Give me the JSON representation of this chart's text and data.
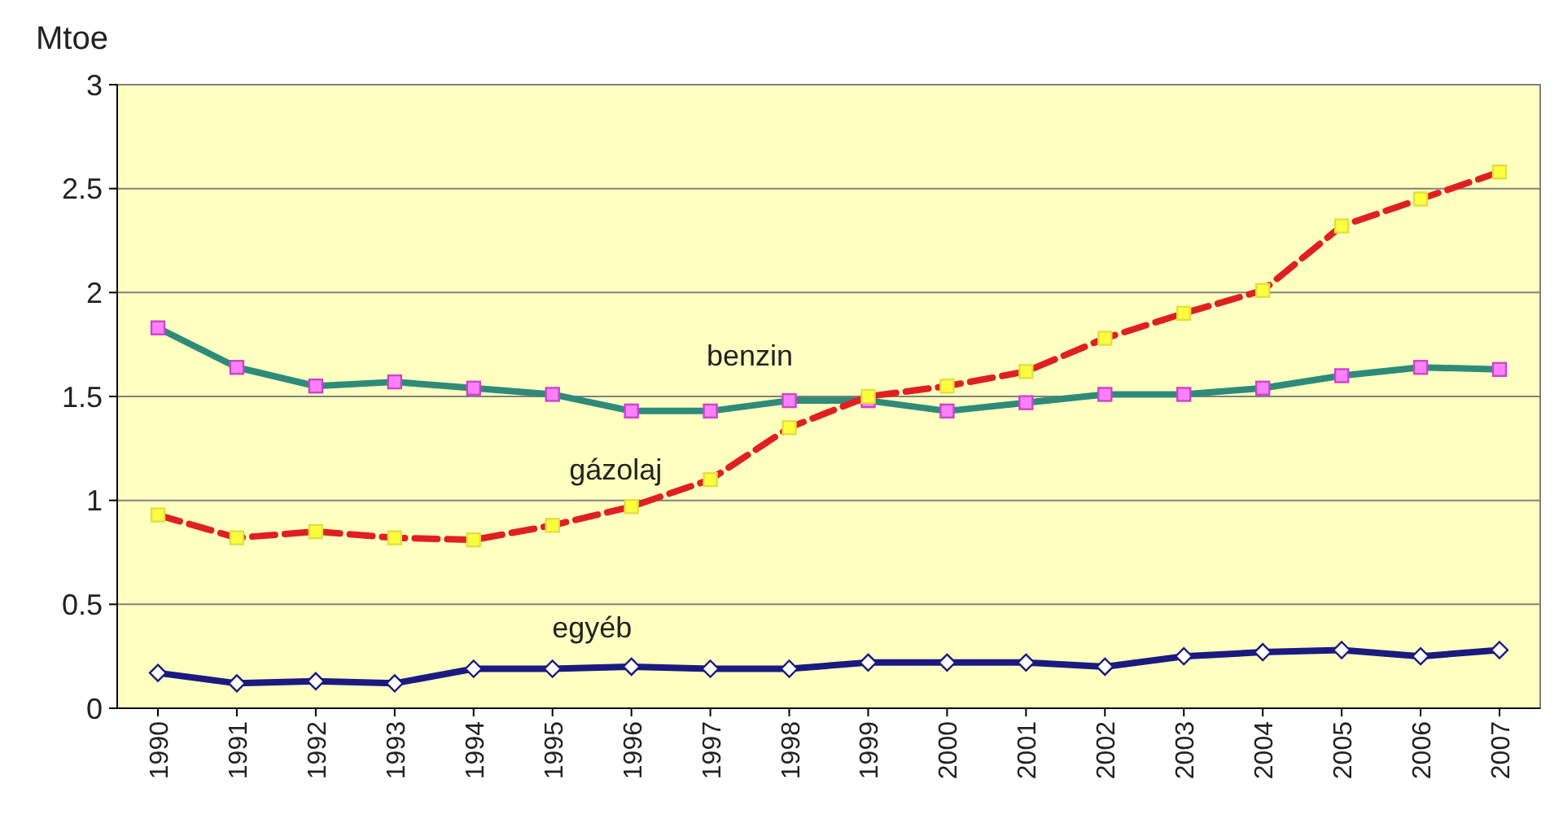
{
  "chart_data": {
    "type": "line",
    "ylabel": "Mtoe",
    "categories": [
      "1990",
      "1991",
      "1992",
      "1993",
      "1994",
      "1995",
      "1996",
      "1997",
      "1998",
      "1999",
      "2000",
      "2001",
      "2002",
      "2003",
      "2004",
      "2005",
      "2006",
      "2007"
    ],
    "ylim": [
      0,
      3
    ],
    "yticks": [
      0,
      0.5,
      1,
      1.5,
      2,
      2.5,
      3
    ],
    "grid": "y",
    "series": [
      {
        "name": "benzin",
        "color": "#2e8b7a",
        "marker": "square",
        "line_style": "solid",
        "values": [
          1.83,
          1.64,
          1.55,
          1.57,
          1.54,
          1.51,
          1.43,
          1.43,
          1.48,
          1.48,
          1.43,
          1.47,
          1.51,
          1.51,
          1.54,
          1.6,
          1.64,
          1.63
        ]
      },
      {
        "name": "gázolaj",
        "color": "#e02020",
        "marker": "square",
        "line_style": "dashed",
        "values": [
          0.93,
          0.82,
          0.85,
          0.82,
          0.81,
          0.88,
          0.97,
          1.1,
          1.35,
          1.5,
          1.55,
          1.62,
          1.78,
          1.9,
          2.01,
          2.32,
          2.45,
          2.58
        ]
      },
      {
        "name": "egyéb",
        "color": "#1a1a80",
        "marker": "diamond",
        "line_style": "solid",
        "values": [
          0.17,
          0.12,
          0.13,
          0.12,
          0.19,
          0.19,
          0.2,
          0.19,
          0.19,
          0.22,
          0.22,
          0.22,
          0.2,
          0.25,
          0.27,
          0.28,
          0.25,
          0.28
        ]
      }
    ]
  }
}
